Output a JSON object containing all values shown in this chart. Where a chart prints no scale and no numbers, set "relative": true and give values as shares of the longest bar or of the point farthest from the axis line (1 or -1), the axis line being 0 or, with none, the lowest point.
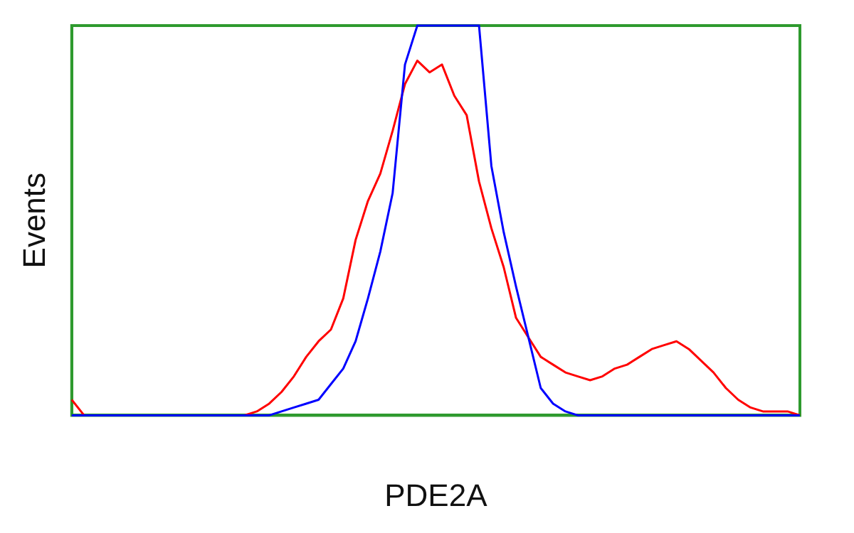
{
  "chart_data": {
    "type": "line",
    "xlabel": "PDE2A",
    "ylabel": "Events",
    "relative": true,
    "grid": false,
    "legend": false,
    "marker": "none",
    "line_style": "solid",
    "categories": [
      null,
      null,
      null,
      null,
      null,
      null,
      null,
      null,
      null,
      null,
      null,
      null,
      null,
      null,
      null,
      null,
      null,
      null,
      null,
      null,
      null,
      null,
      null,
      null,
      null,
      null,
      null,
      null,
      null,
      null,
      null,
      null,
      null,
      null,
      null,
      null,
      null,
      null,
      null,
      null,
      null,
      null,
      null,
      null,
      null,
      null,
      null,
      null,
      null,
      null,
      null,
      null,
      null,
      null,
      null,
      null,
      null,
      null,
      null,
      null
    ],
    "series": [
      {
        "color": "#0000ff",
        "values": [
          0,
          0,
          0,
          0,
          0,
          0,
          0,
          0,
          0,
          0,
          0,
          0,
          0,
          0,
          0,
          0,
          0,
          0.01,
          0.02,
          0.03,
          0.04,
          0.08,
          0.12,
          0.19,
          0.3,
          0.42,
          0.57,
          0.9,
          1,
          1,
          1,
          1,
          1,
          1,
          0.64,
          0.47,
          0.33,
          0.2,
          0.07,
          0.03,
          0.01,
          0,
          0,
          0,
          0,
          0,
          0,
          0,
          0,
          0,
          0,
          0,
          0,
          0,
          0,
          0,
          0,
          0,
          0,
          0
        ]
      },
      {
        "color": "#ff0000",
        "values": [
          0.04,
          0,
          0,
          0,
          0,
          0,
          0,
          0,
          0,
          0,
          0,
          0,
          0,
          0,
          0,
          0.01,
          0.03,
          0.06,
          0.1,
          0.15,
          0.19,
          0.22,
          0.3,
          0.45,
          0.55,
          0.62,
          0.73,
          0.85,
          0.91,
          0.88,
          0.9,
          0.82,
          0.77,
          0.6,
          0.48,
          0.38,
          0.25,
          0.2,
          0.15,
          0.13,
          0.11,
          0.1,
          0.09,
          0.1,
          0.12,
          0.13,
          0.15,
          0.17,
          0.18,
          0.19,
          0.17,
          0.14,
          0.11,
          0.07,
          0.04,
          0.02,
          0.01,
          0.01,
          0.01,
          0
        ]
      }
    ]
  }
}
